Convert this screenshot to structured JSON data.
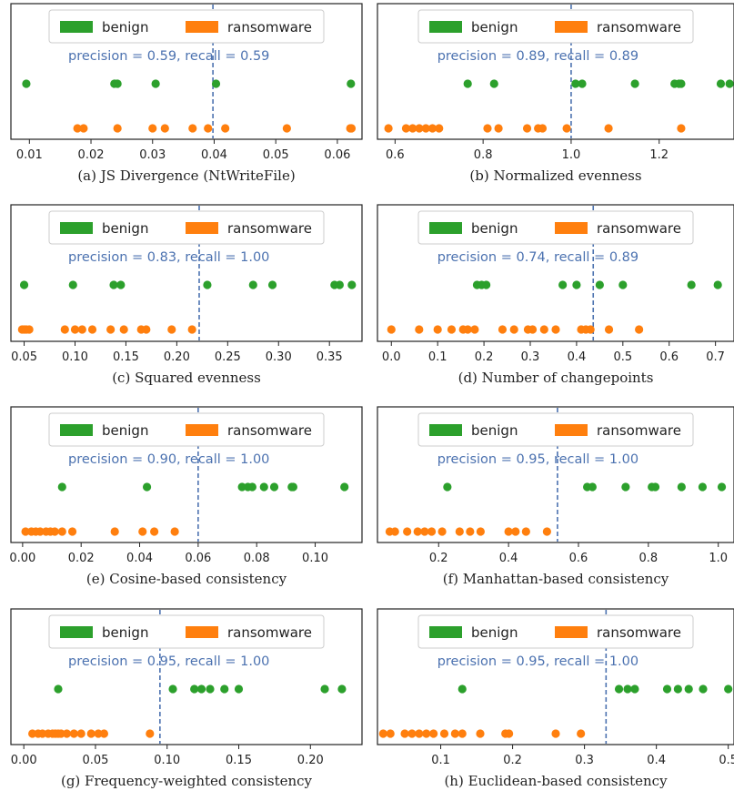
{
  "colors": {
    "benign": "#2ca02c",
    "ransomware": "#ff7f0e",
    "threshold": "#4c72b0",
    "metrics_text": "#4c72b0"
  },
  "chart_data": [
    {
      "type": "scatter",
      "caption": "(a) JS Divergence (NtWriteFile)",
      "metrics": "precision = 0.59, recall = 0.59",
      "legend": [
        "benign",
        "ransomware"
      ],
      "legend_placement": "top-center",
      "xlim": [
        0.007,
        0.064
      ],
      "xticks": [
        0.01,
        0.02,
        0.03,
        0.04,
        0.05,
        0.06
      ],
      "xtick_labels": [
        "0.01",
        "0.02",
        "0.03",
        "0.04",
        "0.05",
        "0.06"
      ],
      "threshold": 0.0398,
      "series": [
        {
          "name": "benign",
          "values": [
            0.0095,
            0.0238,
            0.0243,
            0.0305,
            0.0403,
            0.0622
          ]
        },
        {
          "name": "ransomware",
          "values": [
            0.0178,
            0.0188,
            0.0243,
            0.03,
            0.032,
            0.0365,
            0.039,
            0.0418,
            0.0518,
            0.0621,
            0.0623
          ]
        }
      ]
    },
    {
      "type": "scatter",
      "caption": "(b) Normalized evenness",
      "metrics": "precision = 0.89, recall = 0.89",
      "legend": [
        "benign",
        "ransomware"
      ],
      "legend_placement": "top-center",
      "xlim": [
        0.56,
        1.37
      ],
      "xticks": [
        0.6,
        0.8,
        1.0,
        1.2
      ],
      "xtick_labels": [
        "0.6",
        "0.8",
        "1.0",
        "1.2"
      ],
      "threshold": 1.0,
      "series": [
        {
          "name": "benign",
          "values": [
            0.765,
            0.825,
            1.01,
            1.025,
            1.145,
            1.235,
            1.245,
            1.25,
            1.34,
            1.36
          ]
        },
        {
          "name": "ransomware",
          "values": [
            0.585,
            0.625,
            0.64,
            0.655,
            0.67,
            0.685,
            0.7,
            0.81,
            0.835,
            0.9,
            0.925,
            0.935,
            0.99,
            1.085,
            1.25
          ]
        }
      ]
    },
    {
      "type": "scatter",
      "caption": "(c) Squared evenness",
      "metrics": "precision = 0.83, recall = 1.00",
      "legend": [
        "benign",
        "ransomware"
      ],
      "legend_placement": "top-center",
      "xlim": [
        0.037,
        0.382
      ],
      "xticks": [
        0.05,
        0.1,
        0.15,
        0.2,
        0.25,
        0.3,
        0.35
      ],
      "xtick_labels": [
        "0.05",
        "0.10",
        "0.15",
        "0.20",
        "0.25",
        "0.30",
        "0.35"
      ],
      "threshold": 0.222,
      "series": [
        {
          "name": "benign",
          "values": [
            0.05,
            0.098,
            0.138,
            0.145,
            0.23,
            0.275,
            0.294,
            0.355,
            0.36,
            0.372
          ]
        },
        {
          "name": "ransomware",
          "values": [
            0.048,
            0.05,
            0.052,
            0.055,
            0.09,
            0.1,
            0.107,
            0.117,
            0.135,
            0.148,
            0.165,
            0.17,
            0.195,
            0.215
          ]
        }
      ]
    },
    {
      "type": "scatter",
      "caption": "(d) Number of changepoints",
      "metrics": "precision = 0.74, recall = 0.89",
      "legend": [
        "benign",
        "ransomware"
      ],
      "legend_placement": "top-center",
      "xlim": [
        -0.03,
        0.74
      ],
      "xticks": [
        0.0,
        0.1,
        0.2,
        0.3,
        0.4,
        0.5,
        0.6,
        0.7
      ],
      "xtick_labels": [
        "0.0",
        "0.1",
        "0.2",
        "0.3",
        "0.4",
        "0.5",
        "0.6",
        "0.7"
      ],
      "threshold": 0.436,
      "series": [
        {
          "name": "benign",
          "values": [
            0.185,
            0.195,
            0.205,
            0.37,
            0.4,
            0.45,
            0.5,
            0.648,
            0.705
          ]
        },
        {
          "name": "ransomware",
          "values": [
            0.0,
            0.06,
            0.1,
            0.13,
            0.155,
            0.165,
            0.18,
            0.24,
            0.265,
            0.295,
            0.305,
            0.33,
            0.355,
            0.41,
            0.42,
            0.43,
            0.47,
            0.535
          ]
        }
      ]
    },
    {
      "type": "scatter",
      "caption": "(e) Cosine-based consistency",
      "metrics": "precision = 0.90, recall = 1.00",
      "legend": [
        "benign",
        "ransomware"
      ],
      "legend_placement": "top-center",
      "xlim": [
        -0.004,
        0.116
      ],
      "xticks": [
        0.0,
        0.02,
        0.04,
        0.06,
        0.08,
        0.1
      ],
      "xtick_labels": [
        "0.00",
        "0.02",
        "0.04",
        "0.06",
        "0.08",
        "0.10"
      ],
      "threshold": 0.06,
      "series": [
        {
          "name": "benign",
          "values": [
            0.0135,
            0.0425,
            0.075,
            0.077,
            0.0785,
            0.0825,
            0.086,
            0.092,
            0.0925,
            0.11
          ]
        },
        {
          "name": "ransomware",
          "values": [
            0.001,
            0.003,
            0.0045,
            0.006,
            0.008,
            0.0095,
            0.011,
            0.0135,
            0.017,
            0.0315,
            0.041,
            0.045,
            0.052
          ]
        }
      ]
    },
    {
      "type": "scatter",
      "caption": "(f) Manhattan-based consistency",
      "metrics": "precision = 0.95, recall = 1.00",
      "legend": [
        "benign",
        "ransomware"
      ],
      "legend_placement": "top-center",
      "xlim": [
        0.025,
        1.045
      ],
      "xticks": [
        0.2,
        0.4,
        0.6,
        0.8,
        1.0
      ],
      "xtick_labels": [
        "0.2",
        "0.4",
        "0.6",
        "0.8",
        "1.0"
      ],
      "threshold": 0.54,
      "series": [
        {
          "name": "benign",
          "values": [
            0.225,
            0.625,
            0.64,
            0.735,
            0.81,
            0.82,
            0.895,
            0.955,
            1.01
          ]
        },
        {
          "name": "ransomware",
          "values": [
            0.06,
            0.075,
            0.11,
            0.14,
            0.16,
            0.18,
            0.21,
            0.26,
            0.29,
            0.32,
            0.4,
            0.42,
            0.45,
            0.51
          ]
        }
      ]
    },
    {
      "type": "scatter",
      "caption": "(g) Frequency-weighted consistency",
      "metrics": "precision = 0.95, recall = 1.00",
      "legend": [
        "benign",
        "ransomware"
      ],
      "legend_placement": "top-center",
      "xlim": [
        -0.009,
        0.236
      ],
      "xticks": [
        0.0,
        0.05,
        0.1,
        0.15,
        0.2
      ],
      "xtick_labels": [
        "0.00",
        "0.05",
        "0.10",
        "0.15",
        "0.20"
      ],
      "threshold": 0.095,
      "series": [
        {
          "name": "benign",
          "values": [
            0.024,
            0.104,
            0.119,
            0.124,
            0.13,
            0.14,
            0.15,
            0.21,
            0.222
          ]
        },
        {
          "name": "ransomware",
          "values": [
            0.006,
            0.01,
            0.013,
            0.017,
            0.02,
            0.022,
            0.024,
            0.026,
            0.03,
            0.035,
            0.04,
            0.047,
            0.052,
            0.056,
            0.088
          ]
        }
      ]
    },
    {
      "type": "scatter",
      "caption": "(h) Euclidean-based consistency",
      "metrics": "precision = 0.95, recall = 1.00",
      "legend": [
        "benign",
        "ransomware"
      ],
      "legend_placement": "top-center",
      "xlim": [
        0.012,
        0.508
      ],
      "xticks": [
        0.1,
        0.2,
        0.3,
        0.4,
        0.5
      ],
      "xtick_labels": [
        "0.1",
        "0.2",
        "0.3",
        "0.4",
        "0.5"
      ],
      "threshold": 0.33,
      "series": [
        {
          "name": "benign",
          "values": [
            0.13,
            0.348,
            0.36,
            0.37,
            0.415,
            0.43,
            0.445,
            0.465,
            0.5
          ]
        },
        {
          "name": "ransomware",
          "values": [
            0.02,
            0.03,
            0.05,
            0.06,
            0.07,
            0.08,
            0.09,
            0.105,
            0.12,
            0.13,
            0.155,
            0.19,
            0.195,
            0.26,
            0.295
          ]
        }
      ]
    }
  ]
}
